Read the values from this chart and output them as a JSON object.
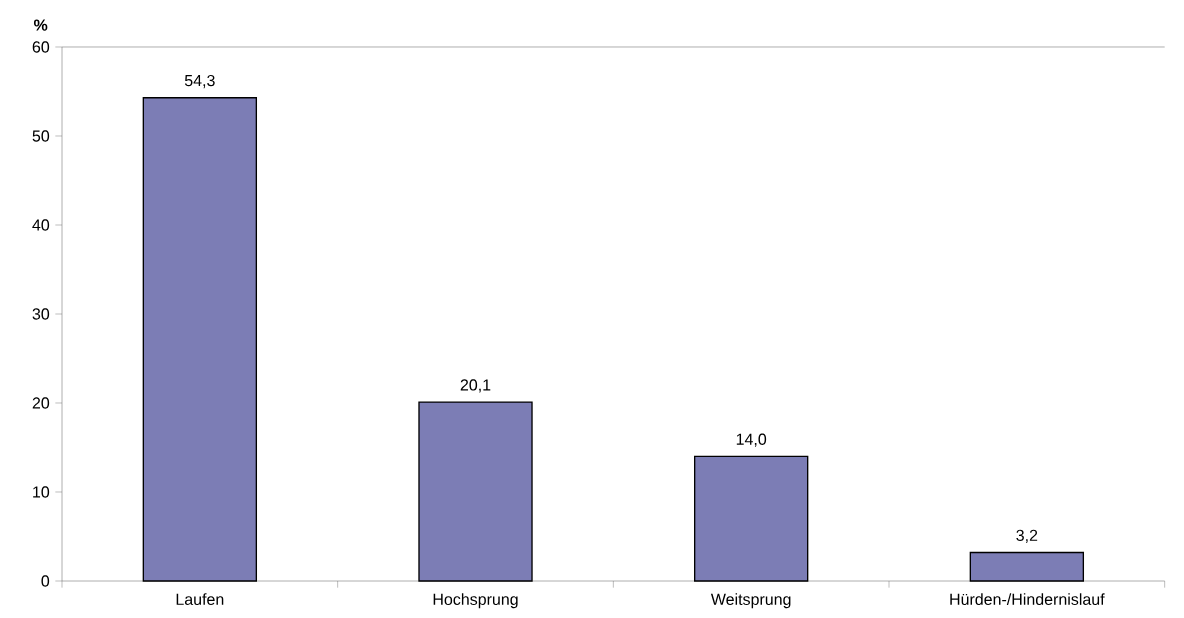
{
  "chart_data": {
    "type": "bar",
    "ylabel": "%",
    "categories": [
      "Laufen",
      "Hochsprung",
      "Weitsprung",
      "Hürden-/Hindernislauf"
    ],
    "values": [
      54.3,
      20.1,
      14.0,
      3.2
    ],
    "value_labels": [
      "54,3",
      "20,1",
      "14,0",
      "3,2"
    ],
    "color": "#7c7db5",
    "ylim": [
      0,
      60
    ],
    "yticks": [
      0,
      10,
      20,
      30,
      40,
      50,
      60
    ]
  }
}
